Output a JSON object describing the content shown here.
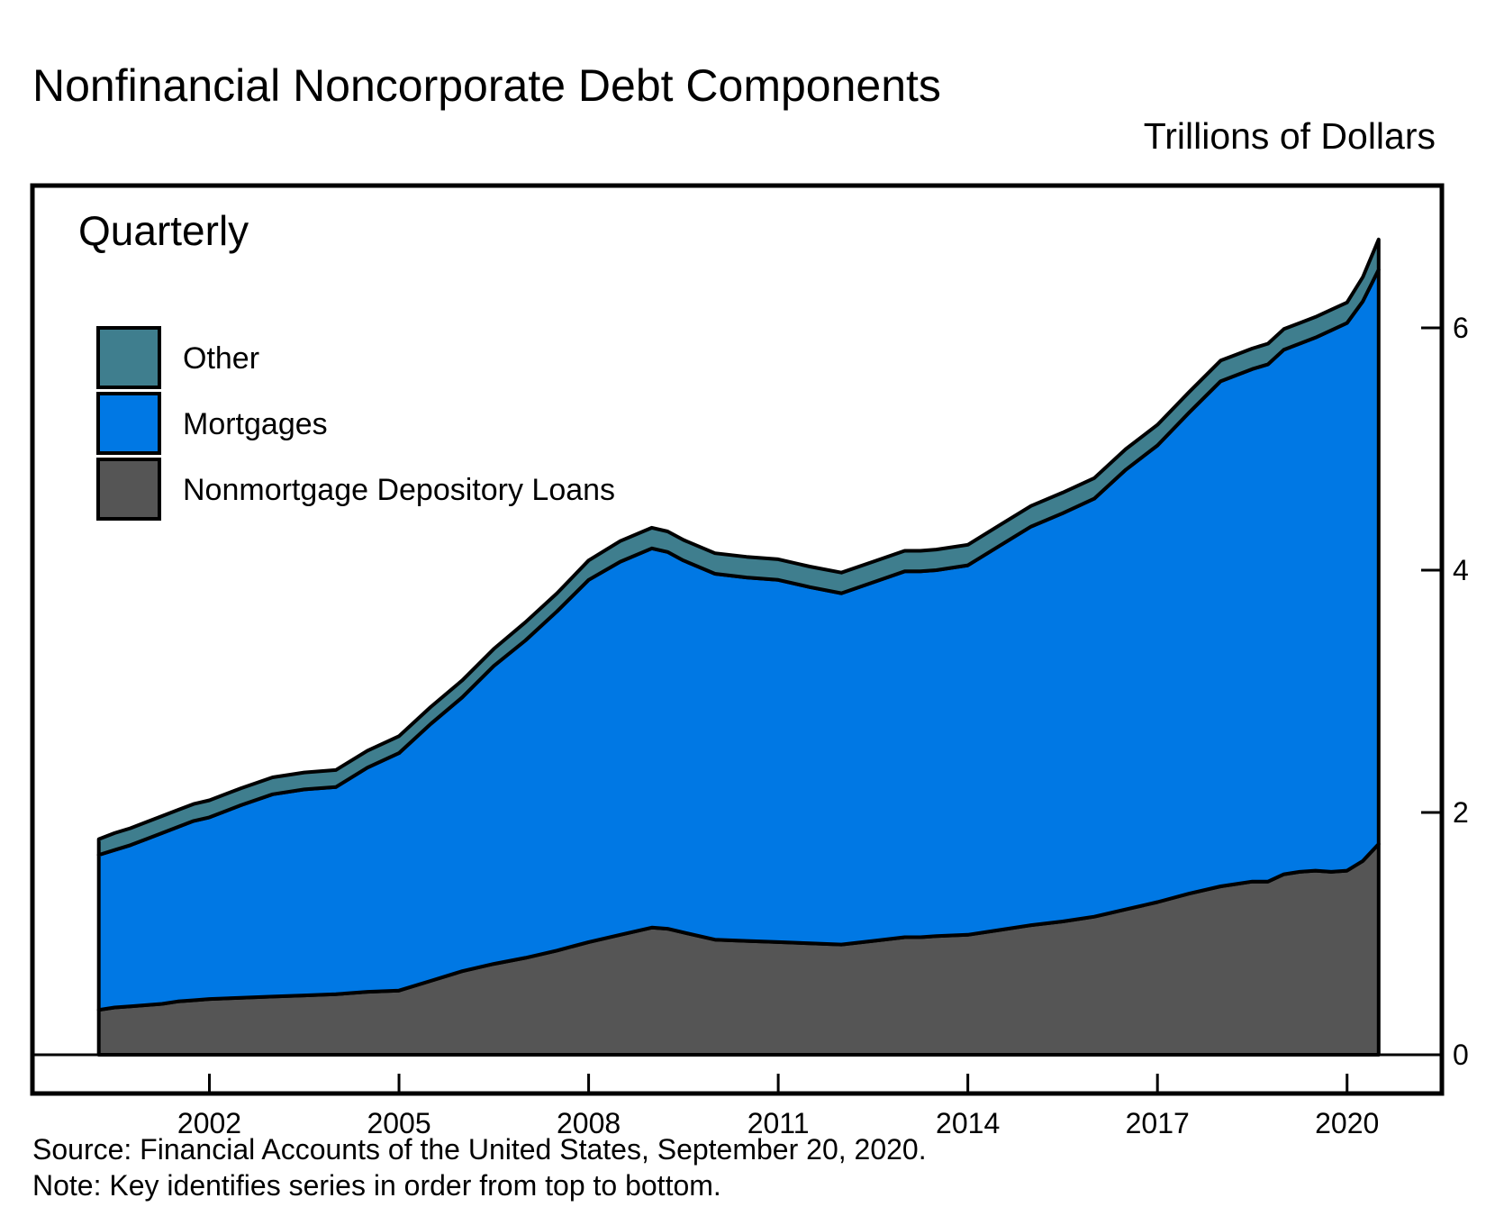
{
  "header": {
    "title": "Nonfinancial Noncorporate Debt Components",
    "units": "Trillions of Dollars"
  },
  "footer": {
    "source": "Source: Financial Accounts of the United States, September 20, 2020.",
    "note": "Note: Key identifies series in order from top to bottom."
  },
  "chart_data": {
    "type": "area",
    "stacked": true,
    "frequency_label": "Quarterly",
    "x_tick_labels": [
      "2002",
      "2005",
      "2008",
      "2011",
      "2014",
      "2017",
      "2020"
    ],
    "y_tick_labels": [
      "0",
      "2",
      "4",
      "6"
    ],
    "ylim": [
      0,
      7.0
    ],
    "xlim": [
      1999.2,
      2021.5
    ],
    "legend_placement": "top-left",
    "x": [
      2000.25,
      2000.5,
      2000.75,
      2001.0,
      2001.25,
      2001.5,
      2001.75,
      2002.0,
      2002.5,
      2003.0,
      2003.5,
      2004.0,
      2004.5,
      2005.0,
      2005.5,
      2006.0,
      2006.5,
      2007.0,
      2007.5,
      2008.0,
      2008.5,
      2009.0,
      2009.25,
      2009.5,
      2010.0,
      2010.5,
      2011.0,
      2011.5,
      2012.0,
      2012.5,
      2013.0,
      2013.25,
      2013.5,
      2014.0,
      2014.5,
      2015.0,
      2015.5,
      2016.0,
      2016.5,
      2017.0,
      2017.5,
      2018.0,
      2018.25,
      2018.5,
      2018.75,
      2019.0,
      2019.25,
      2019.5,
      2019.75,
      2020.0,
      2020.25,
      2020.5
    ],
    "series": [
      {
        "name": "Other",
        "color": "#3f7e8e",
        "values": [
          0.13,
          0.14,
          0.14,
          0.14,
          0.14,
          0.14,
          0.14,
          0.14,
          0.14,
          0.14,
          0.14,
          0.14,
          0.14,
          0.14,
          0.14,
          0.14,
          0.14,
          0.15,
          0.15,
          0.16,
          0.17,
          0.17,
          0.17,
          0.17,
          0.17,
          0.17,
          0.17,
          0.17,
          0.17,
          0.17,
          0.17,
          0.17,
          0.17,
          0.17,
          0.17,
          0.17,
          0.17,
          0.17,
          0.17,
          0.17,
          0.17,
          0.17,
          0.17,
          0.17,
          0.17,
          0.17,
          0.17,
          0.17,
          0.17,
          0.17,
          0.2,
          0.25
        ]
      },
      {
        "name": "Mortgages",
        "color": "#0078e4",
        "values": [
          1.28,
          1.3,
          1.33,
          1.37,
          1.41,
          1.44,
          1.48,
          1.5,
          1.59,
          1.67,
          1.7,
          1.71,
          1.85,
          1.96,
          2.12,
          2.26,
          2.46,
          2.62,
          2.8,
          2.99,
          3.08,
          3.13,
          3.11,
          3.07,
          3.02,
          3.0,
          2.99,
          2.94,
          2.9,
          2.96,
          3.02,
          3.02,
          3.02,
          3.05,
          3.17,
          3.29,
          3.37,
          3.45,
          3.63,
          3.77,
          3.97,
          4.17,
          4.2,
          4.23,
          4.27,
          4.33,
          4.36,
          4.4,
          4.47,
          4.52,
          4.62,
          4.74
        ]
      },
      {
        "name": "Nonmortgage Depository Loans",
        "color": "#555555",
        "values": [
          0.37,
          0.39,
          0.4,
          0.41,
          0.42,
          0.44,
          0.45,
          0.46,
          0.47,
          0.48,
          0.49,
          0.5,
          0.52,
          0.53,
          0.61,
          0.69,
          0.75,
          0.8,
          0.86,
          0.93,
          0.99,
          1.05,
          1.04,
          1.01,
          0.95,
          0.94,
          0.93,
          0.92,
          0.91,
          0.94,
          0.97,
          0.97,
          0.98,
          0.99,
          1.03,
          1.07,
          1.1,
          1.14,
          1.2,
          1.26,
          1.33,
          1.39,
          1.41,
          1.43,
          1.43,
          1.49,
          1.51,
          1.52,
          1.51,
          1.52,
          1.6,
          1.74
        ]
      }
    ]
  }
}
